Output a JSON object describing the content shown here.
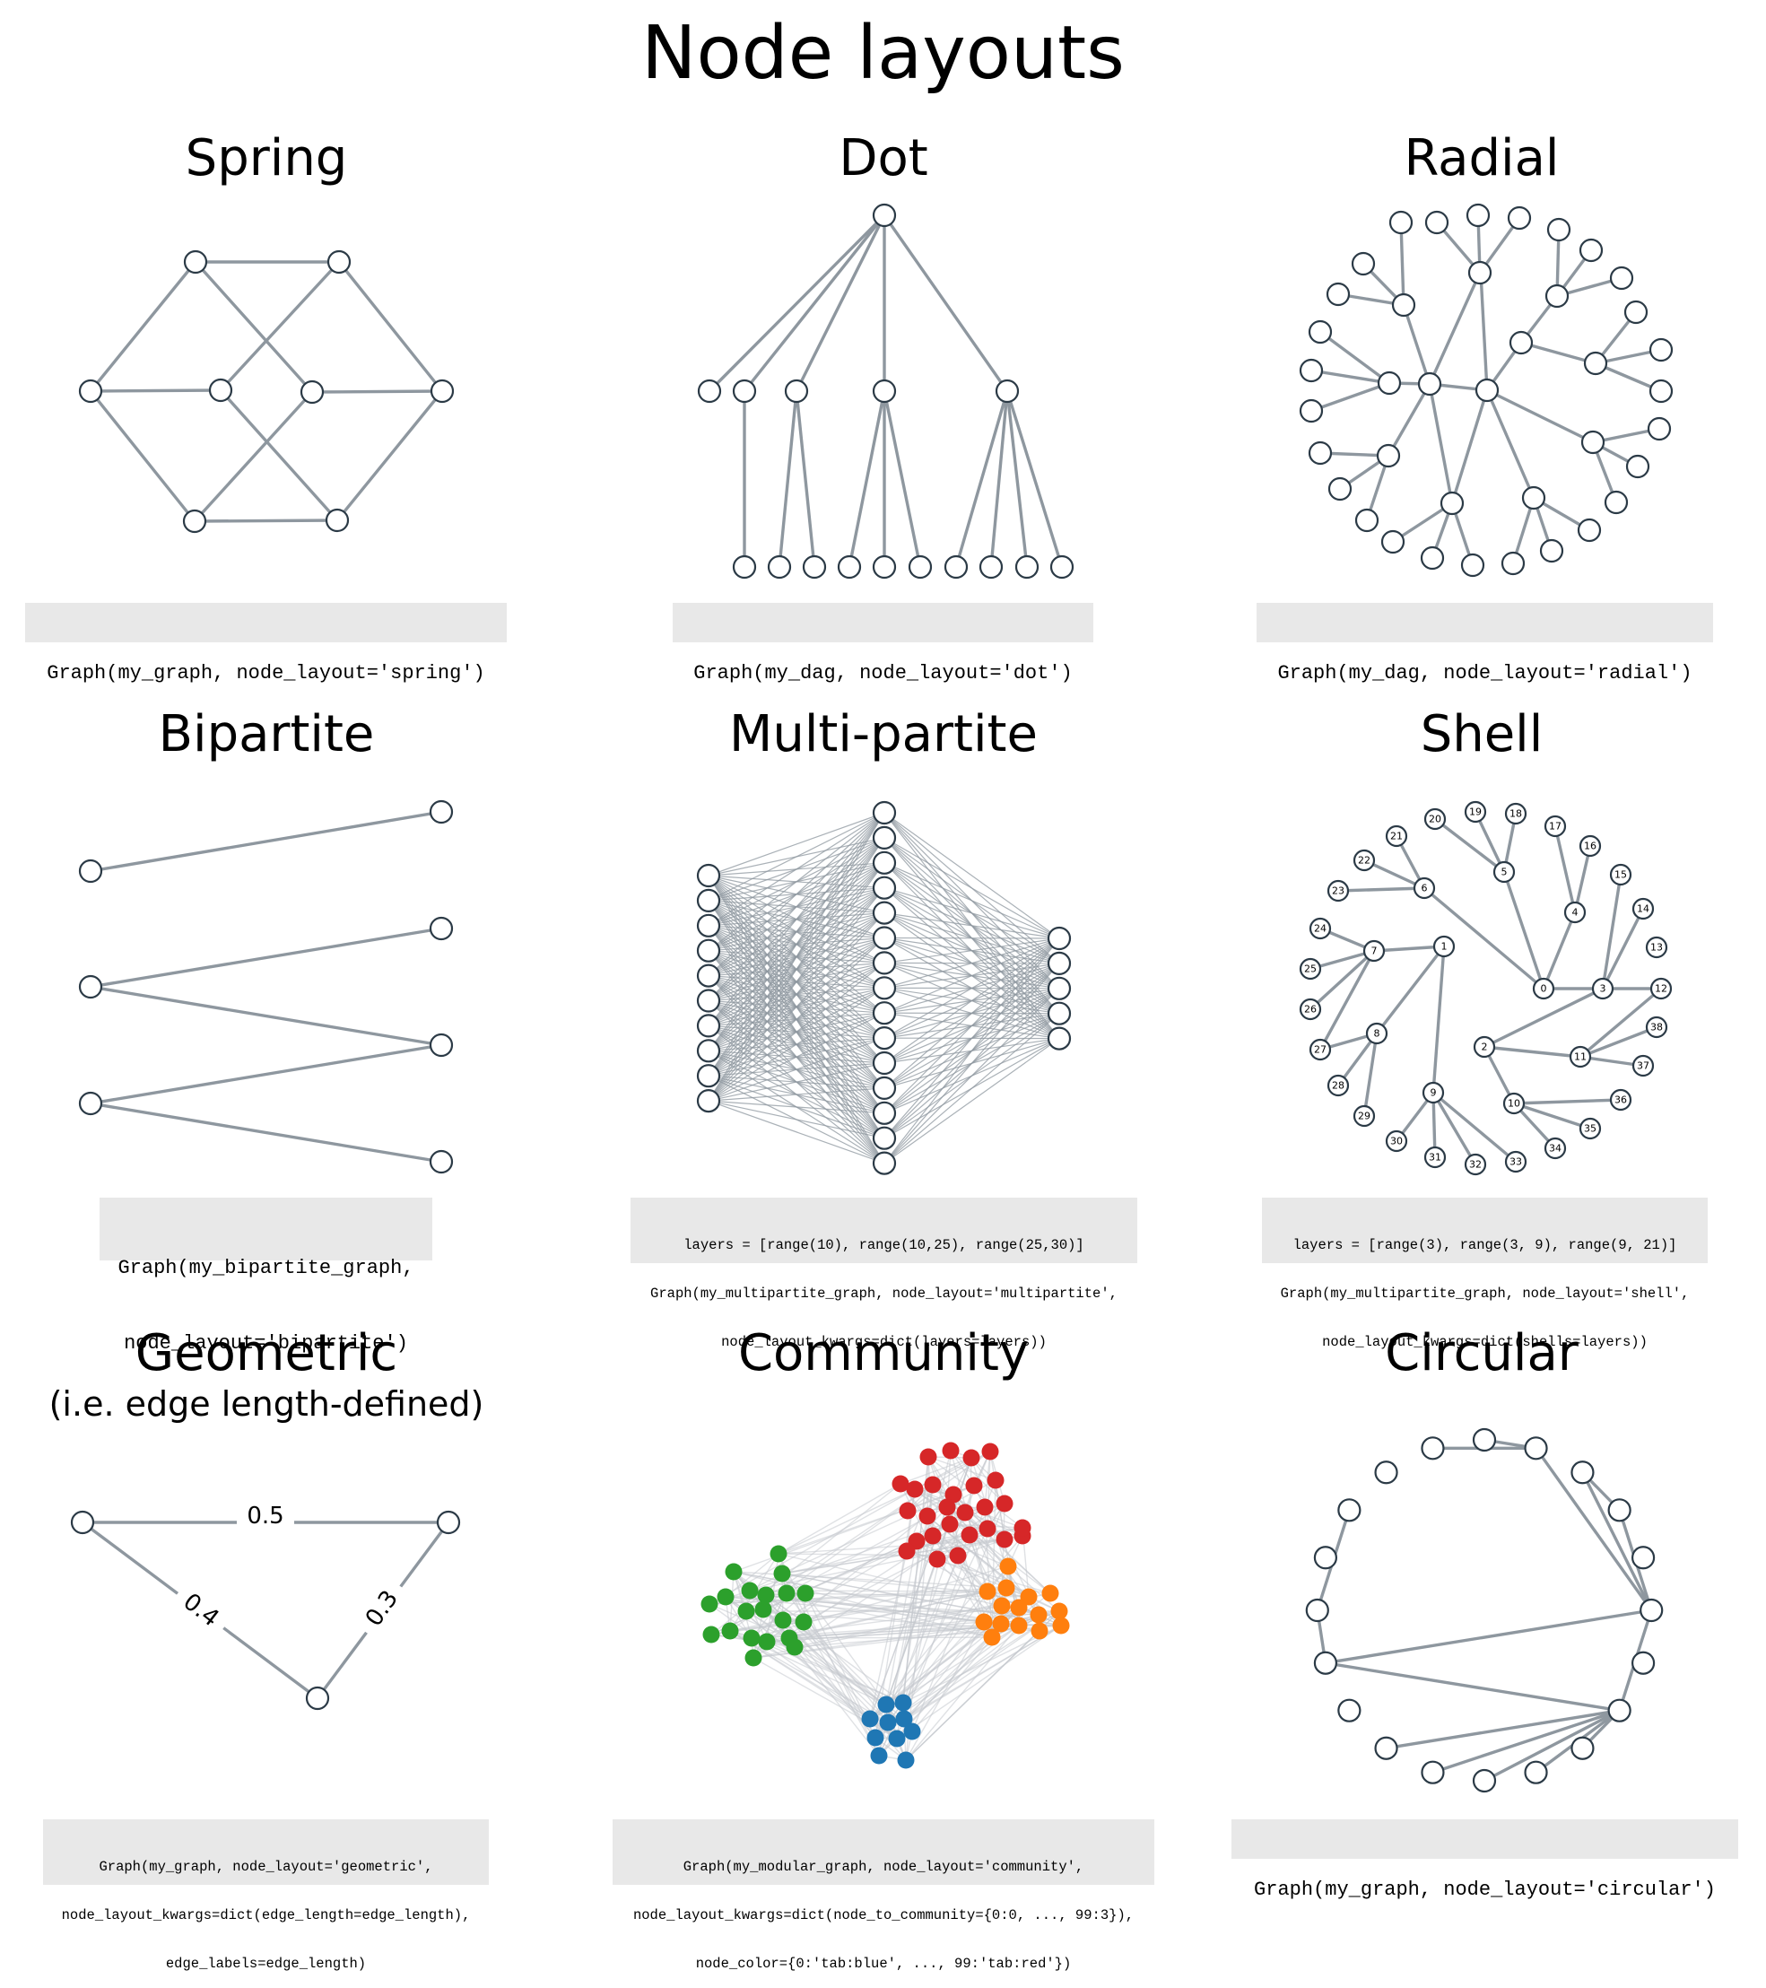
{
  "title": "Node layouts",
  "panels": {
    "spring": {
      "title": "Spring",
      "code": [
        "Graph(my_graph, node_layout='spring')"
      ]
    },
    "dot": {
      "title": "Dot",
      "code": [
        "Graph(my_dag, node_layout='dot')"
      ]
    },
    "radial": {
      "title": "Radial",
      "code": [
        "Graph(my_dag, node_layout='radial')"
      ]
    },
    "bipartite": {
      "title": "Bipartite",
      "code": [
        "Graph(my_bipartite_graph,",
        "node_layout='bipartite')"
      ]
    },
    "multipartite": {
      "title": "Multi-partite",
      "code": [
        "layers = [range(10), range(10,25), range(25,30)]",
        "Graph(my_multipartite_graph, node_layout='multipartite',",
        "node_layout_kwargs=dict(layers=layers))"
      ]
    },
    "shell": {
      "title": "Shell",
      "code": [
        "layers = [range(3), range(3, 9), range(9, 21)]",
        "Graph(my_multipartite_graph, node_layout='shell',",
        "node_layout_kwargs=dict(shells=layers))"
      ]
    },
    "geometric": {
      "title": "Geometric",
      "subtitle": "(i.e. edge length-defined)",
      "code": [
        "Graph(my_graph, node_layout='geometric',",
        "node_layout_kwargs=dict(edge_length=edge_length),",
        "edge_labels=edge_length)"
      ],
      "edge_labels": [
        "0.5",
        "0.4",
        "0.3"
      ]
    },
    "community": {
      "title": "Community",
      "code": [
        "Graph(my_modular_graph, node_layout='community',",
        "node_layout_kwargs=dict(node_to_community={0:0, ..., 99:3}),",
        "node_color={0:'tab:blue', ..., 99:'tab:red'})"
      ]
    },
    "circular": {
      "title": "Circular",
      "code": [
        "Graph(my_graph, node_layout='circular')"
      ]
    }
  },
  "shell_node_labels": [
    "0",
    "1",
    "2",
    "3",
    "4",
    "5",
    "6",
    "7",
    "8",
    "9",
    "10",
    "11",
    "12",
    "13",
    "14",
    "15",
    "16",
    "17",
    "18",
    "19",
    "20",
    "21",
    "22",
    "23",
    "24",
    "25",
    "26",
    "27",
    "28",
    "29",
    "30",
    "31",
    "32",
    "33",
    "34",
    "35",
    "36",
    "37",
    "38"
  ],
  "colors": {
    "edge": "#8e979f",
    "node_stroke": "#2b3a46",
    "code_bg": "#e8e8e8",
    "tab_blue": "#1f77b4",
    "tab_orange": "#ff7f0e",
    "tab_green": "#2ca02c",
    "tab_red": "#d62728"
  }
}
